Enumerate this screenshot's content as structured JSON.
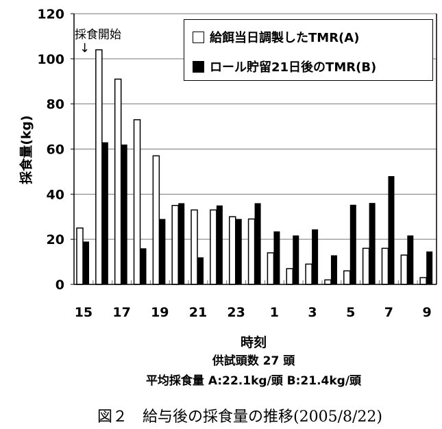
{
  "chart_data": {
    "type": "bar",
    "title": "",
    "xlabel": "時刻",
    "ylabel": "採食量(kg)",
    "ylim": [
      0,
      120
    ],
    "yticks": [
      0,
      20,
      40,
      60,
      80,
      100,
      120
    ],
    "grid": true,
    "categories": [
      "15",
      "16",
      "17",
      "18",
      "19",
      "20",
      "21",
      "22",
      "23",
      "0",
      "1",
      "2",
      "3",
      "4",
      "5",
      "6",
      "7",
      "8",
      "9"
    ],
    "xtick_labels": [
      "15",
      "17",
      "19",
      "21",
      "23",
      "1",
      "3",
      "5",
      "7",
      "9"
    ],
    "series": [
      {
        "name": "給餌当日調製したTMR(A)",
        "color": "#ffffff",
        "values": [
          25,
          104,
          91,
          73,
          57,
          35,
          33,
          33,
          30,
          29,
          14,
          7,
          9,
          2,
          6,
          16,
          16,
          13,
          3
        ]
      },
      {
        "name": "ロール貯留21日後のTMR(B)",
        "color": "#000000",
        "values": [
          19,
          63,
          62,
          16,
          29,
          36,
          12,
          35,
          29,
          36,
          23.5,
          21.7,
          24.4,
          12.9,
          35.3,
          36.1,
          48,
          21.7,
          14.6
        ]
      }
    ],
    "legend": "top-right",
    "annotation": "採食開始",
    "annotation_arrow": "↓"
  },
  "notes": {
    "subjects": "供試頭数 27 頭",
    "average": "平均採食量 A:22.1kg/頭  B:21.4kg/頭"
  },
  "caption": "図２　給与後の採食量の推移(2005/8/22)"
}
